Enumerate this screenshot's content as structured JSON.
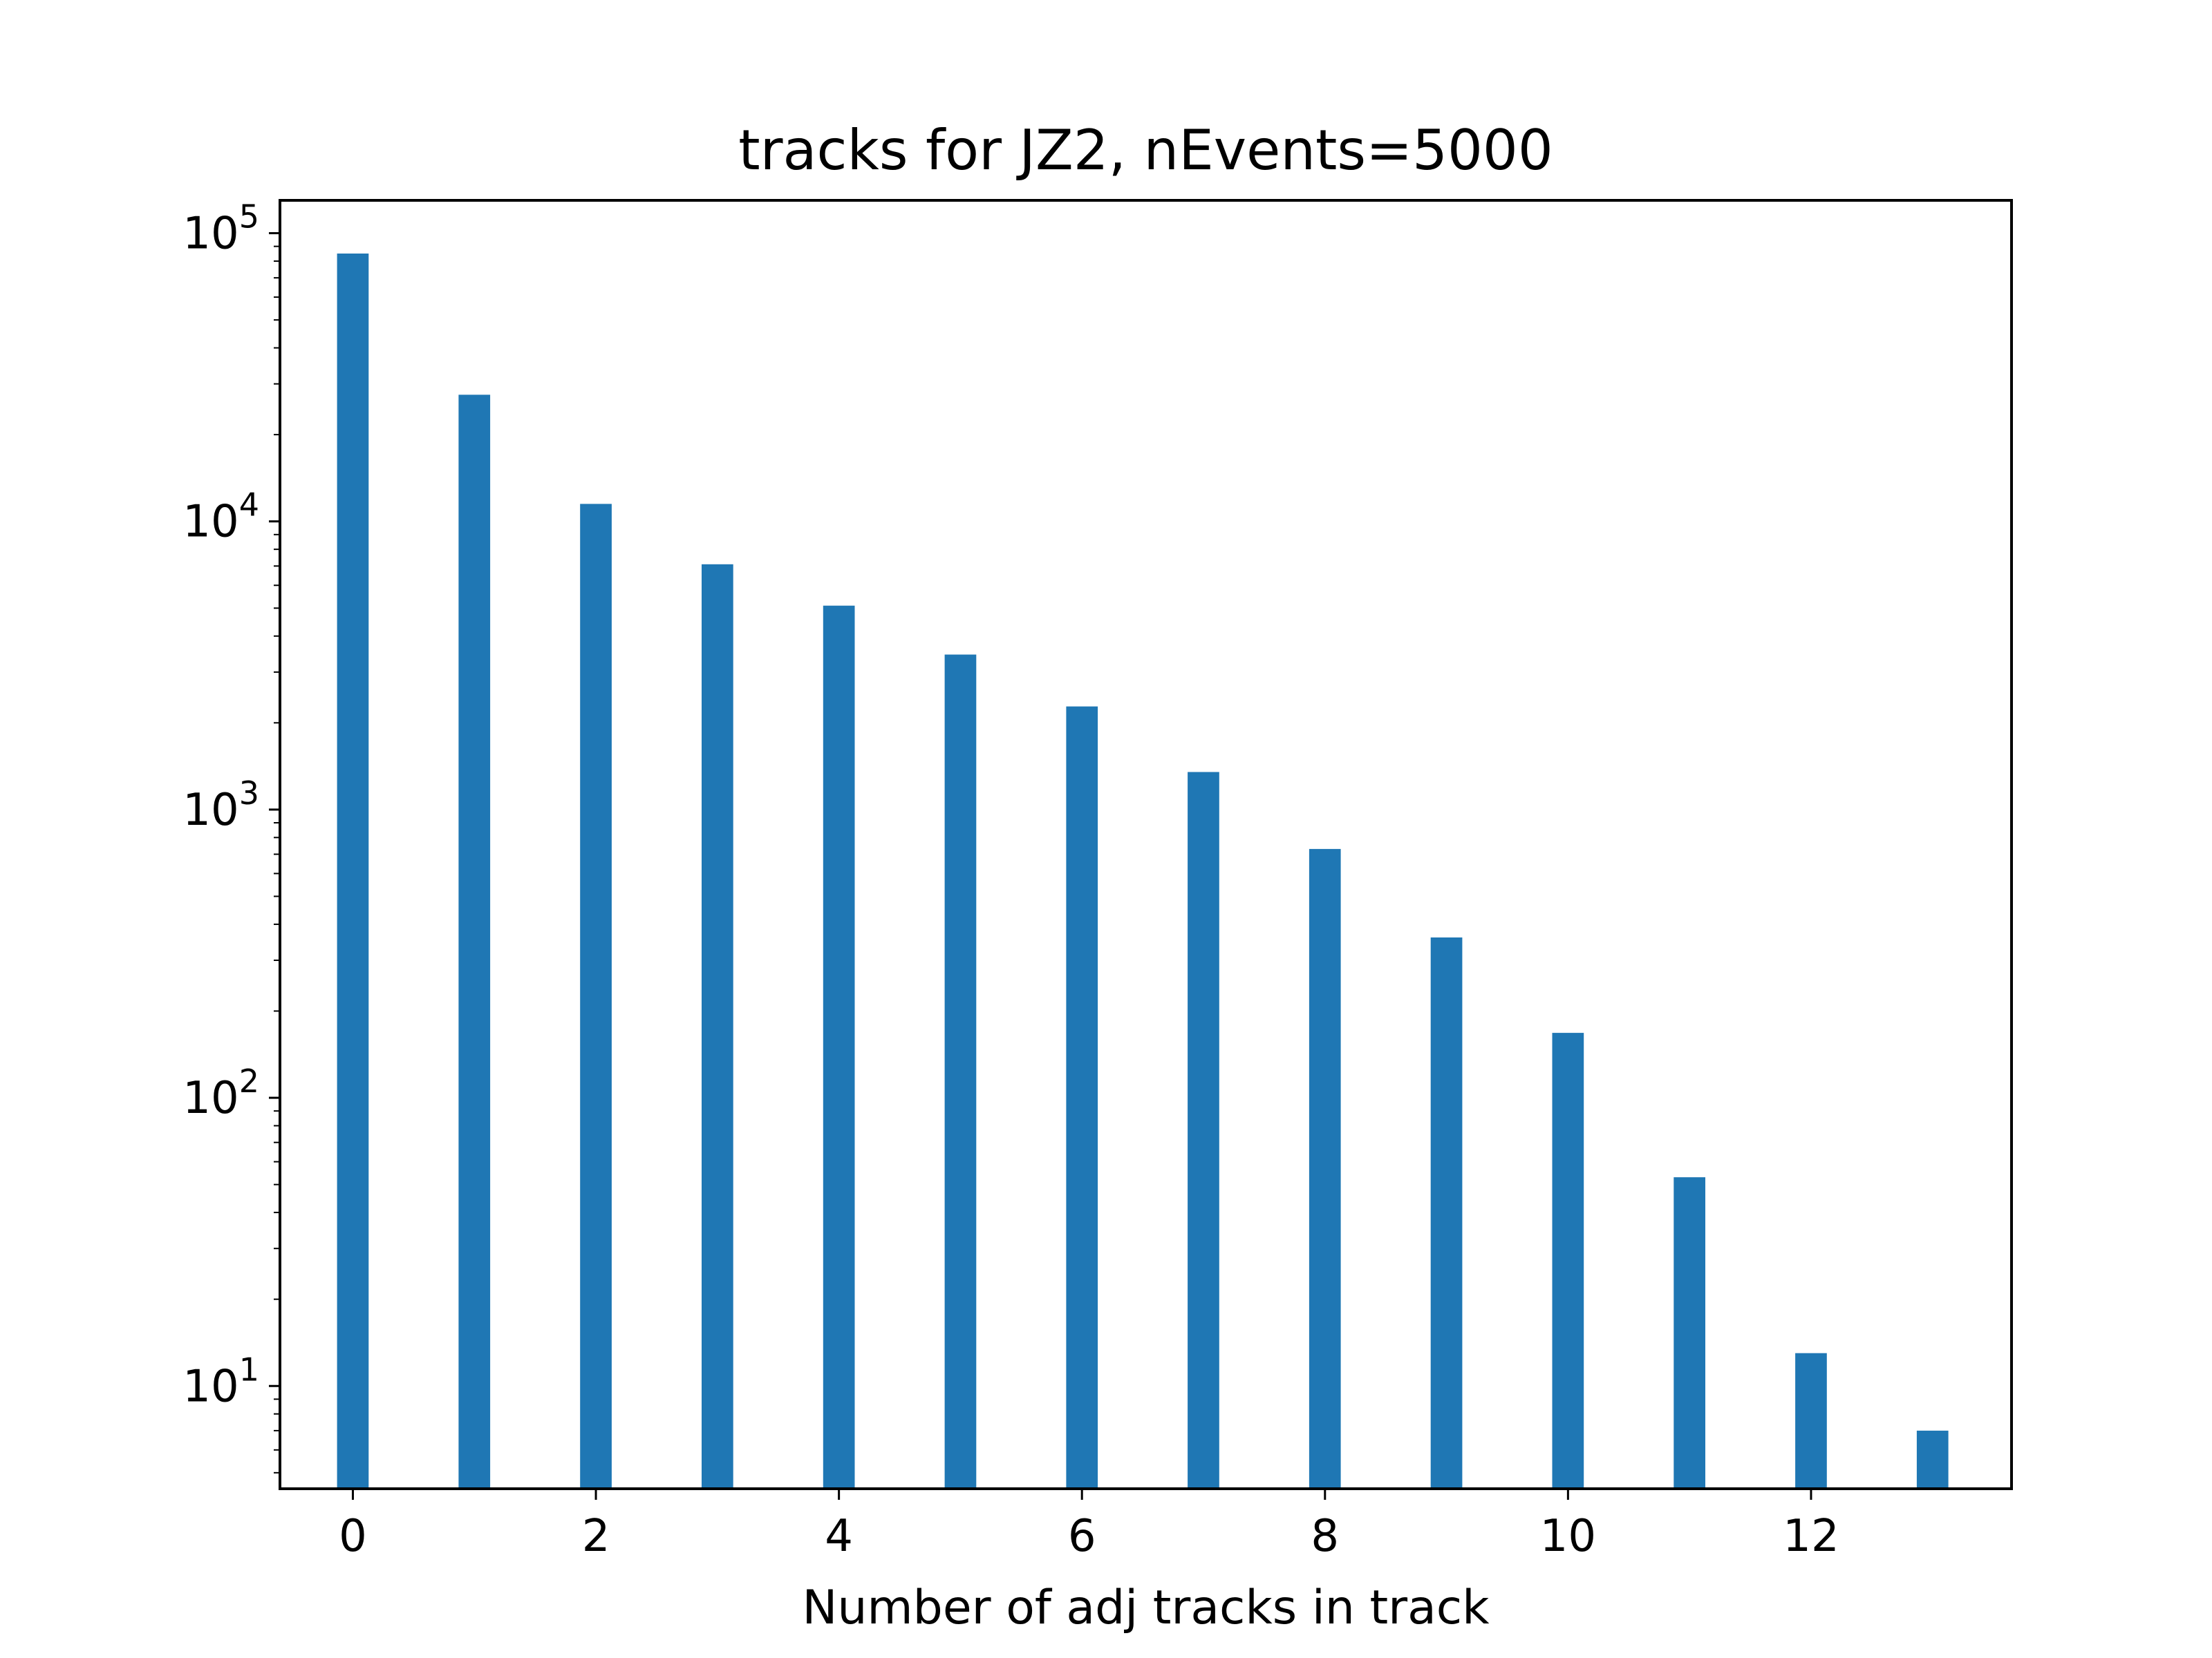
{
  "chart_data": {
    "type": "bar",
    "title": "tracks for JZ2, nEvents=5000",
    "xlabel": "Number of adj tracks in track",
    "ylabel": "",
    "yscale": "log",
    "x": [
      0,
      1,
      2,
      3,
      4,
      5,
      6,
      7,
      8,
      9,
      10,
      11,
      12,
      13
    ],
    "values": [
      85000,
      27500,
      11500,
      7100,
      5100,
      3450,
      2280,
      1350,
      730,
      360,
      168,
      53,
      13,
      7
    ],
    "xlim": [
      -0.6,
      13.65
    ],
    "ylim": [
      4.4,
      130000
    ],
    "xticks": [
      "0",
      "2",
      "4",
      "6",
      "8",
      "10",
      "12"
    ],
    "yticks": [
      {
        "base": "10",
        "exp": "1"
      },
      {
        "base": "10",
        "exp": "2"
      },
      {
        "base": "10",
        "exp": "3"
      },
      {
        "base": "10",
        "exp": "4"
      },
      {
        "base": "10",
        "exp": "5"
      }
    ],
    "grid": false,
    "colors": {
      "bar": "#1f77b4",
      "axis": "#000000"
    }
  }
}
